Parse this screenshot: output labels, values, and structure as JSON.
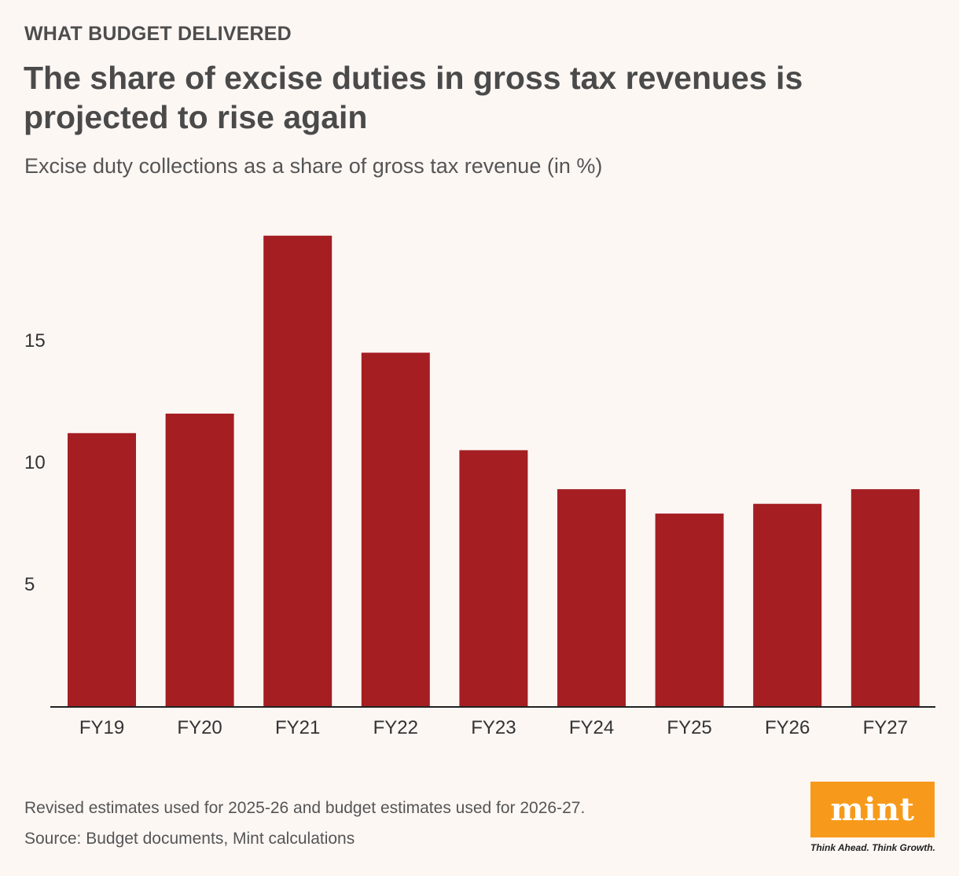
{
  "header": {
    "kicker": "WHAT BUDGET DELIVERED",
    "headline": "The share of excise duties in gross tax revenues is projected to rise again",
    "subtitle": "Excise duty collections as a share of gross tax revenue (in %)"
  },
  "chart_data": {
    "type": "bar",
    "title": "The share of excise duties in gross tax revenues is projected to rise again",
    "subtitle": "Excise duty collections as a share of gross tax revenue (in %)",
    "xlabel": "",
    "ylabel": "",
    "categories": [
      "FY19",
      "FY20",
      "FY21",
      "FY22",
      "FY23",
      "FY24",
      "FY25",
      "FY26",
      "FY27"
    ],
    "values": [
      11.2,
      12.0,
      19.3,
      14.5,
      10.5,
      8.9,
      7.9,
      8.3,
      8.9
    ],
    "ylim": [
      0,
      20
    ],
    "yticks": [
      5,
      10,
      15
    ],
    "grid": false,
    "bar_color": "#a41e22"
  },
  "footer": {
    "note": "Revised estimates used for 2025-26 and budget estimates used for 2026-27.",
    "source": "Source: Budget documents, Mint calculations",
    "logo_text": "mint",
    "tagline": "Think Ahead. Think Growth."
  }
}
